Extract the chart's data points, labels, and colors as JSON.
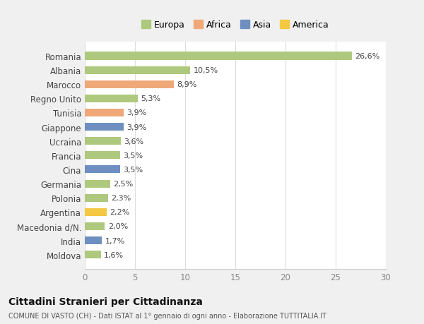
{
  "categories": [
    "Romania",
    "Albania",
    "Marocco",
    "Regno Unito",
    "Tunisia",
    "Giappone",
    "Ucraina",
    "Francia",
    "Cina",
    "Germania",
    "Polonia",
    "Argentina",
    "Macedonia d/N.",
    "India",
    "Moldova"
  ],
  "values": [
    26.6,
    10.5,
    8.9,
    5.3,
    3.9,
    3.9,
    3.6,
    3.5,
    3.5,
    2.5,
    2.3,
    2.2,
    2.0,
    1.7,
    1.6
  ],
  "labels": [
    "26,6%",
    "10,5%",
    "8,9%",
    "5,3%",
    "3,9%",
    "3,9%",
    "3,6%",
    "3,5%",
    "3,5%",
    "2,5%",
    "2,3%",
    "2,2%",
    "2,0%",
    "1,7%",
    "1,6%"
  ],
  "colors": [
    "#aec97e",
    "#aec97e",
    "#f0a878",
    "#aec97e",
    "#f0a878",
    "#6e8fc0",
    "#aec97e",
    "#aec97e",
    "#6e8fc0",
    "#aec97e",
    "#aec97e",
    "#f5c842",
    "#aec97e",
    "#6e8fc0",
    "#aec97e"
  ],
  "continent_labels": [
    "Europa",
    "Africa",
    "Asia",
    "America"
  ],
  "continent_colors": [
    "#aec97e",
    "#f0a878",
    "#6e8fc0",
    "#f5c842"
  ],
  "xlim": [
    0,
    30
  ],
  "xticks": [
    0,
    5,
    10,
    15,
    20,
    25,
    30
  ],
  "title": "Cittadini Stranieri per Cittadinanza",
  "subtitle": "COMUNE DI VASTO (CH) - Dati ISTAT al 1° gennaio di ogni anno - Elaborazione TUTTITALIA.IT",
  "background_color": "#f0f0f0",
  "bar_bg_color": "#ffffff",
  "grid_color": "#dddddd"
}
